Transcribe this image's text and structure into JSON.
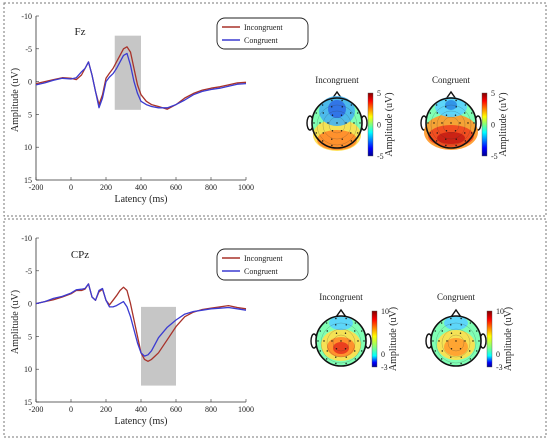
{
  "chart_data": [
    {
      "type": "line",
      "title": "Fz",
      "xlabel": "Latency (ms)",
      "ylabel": "Amplitude (uV)",
      "xlim": [
        -200,
        1000
      ],
      "ylim": [
        -10,
        15
      ],
      "y_inverted": true,
      "xticks": [
        "-200",
        "0",
        "200",
        "400",
        "600",
        "800",
        "1000"
      ],
      "yticks": [
        "-10",
        "-5",
        "0",
        "5",
        "10",
        "15"
      ],
      "highlight_window": {
        "x": [
          250,
          400
        ],
        "y": [
          -7,
          4.3
        ]
      },
      "legend": {
        "position": "top-right",
        "entries": [
          "Incongruent",
          "Congruent"
        ]
      },
      "series": [
        {
          "name": "Incongruent",
          "color": "#a8322a",
          "x": [
            -200,
            -150,
            -100,
            -50,
            0,
            30,
            60,
            80,
            100,
            120,
            140,
            160,
            180,
            200,
            220,
            240,
            260,
            280,
            300,
            320,
            340,
            360,
            380,
            400,
            430,
            460,
            500,
            550,
            600,
            650,
            700,
            750,
            800,
            850,
            900,
            950,
            1000
          ],
          "y": [
            0.3,
            0,
            -0.3,
            -0.6,
            -0.5,
            -0.3,
            -1,
            -2,
            -3,
            -1,
            1.5,
            3.5,
            2,
            -0.5,
            -1.3,
            -2,
            -3,
            -4,
            -5,
            -5.3,
            -4.5,
            -2,
            0.5,
            2,
            3,
            3.5,
            3.8,
            4.2,
            3.5,
            2.5,
            1.8,
            1.3,
            1,
            0.8,
            0.5,
            0.2,
            0.1
          ]
        },
        {
          "name": "Congruent",
          "color": "#3b3bd1",
          "x": [
            -200,
            -150,
            -100,
            -50,
            0,
            30,
            60,
            80,
            100,
            120,
            140,
            160,
            180,
            200,
            220,
            240,
            260,
            280,
            300,
            320,
            340,
            360,
            380,
            400,
            430,
            460,
            500,
            550,
            600,
            650,
            700,
            750,
            800,
            850,
            900,
            950,
            1000
          ],
          "y": [
            0.5,
            0.2,
            -0.2,
            -0.5,
            -0.4,
            -0.6,
            -1.5,
            -2,
            -3,
            -1,
            1.5,
            4,
            2.5,
            0,
            -0.7,
            -1.2,
            -2,
            -3,
            -4,
            -4.3,
            -2.5,
            0,
            1.8,
            3,
            3.5,
            3.8,
            4,
            4,
            3.5,
            2.8,
            2,
            1.5,
            1.2,
            1,
            0.7,
            0.4,
            0.3
          ]
        }
      ]
    },
    {
      "type": "line",
      "title": "CPz",
      "xlabel": "Latency (ms)",
      "ylabel": "Amplitude (uV)",
      "xlim": [
        -200,
        1000
      ],
      "ylim": [
        -10,
        15
      ],
      "y_inverted": true,
      "xticks": [
        "-200",
        "0",
        "200",
        "400",
        "600",
        "800",
        "1000"
      ],
      "yticks": [
        "-10",
        "-5",
        "0",
        "5",
        "10",
        "15"
      ],
      "highlight_window": {
        "x": [
          400,
          600
        ],
        "y": [
          0.5,
          12.5
        ]
      },
      "legend": {
        "position": "top-right",
        "entries": [
          "Incongruent",
          "Congruent"
        ]
      },
      "series": [
        {
          "name": "Incongruent",
          "color": "#a8322a",
          "x": [
            -200,
            -150,
            -100,
            -50,
            0,
            30,
            60,
            80,
            100,
            120,
            140,
            160,
            180,
            200,
            220,
            240,
            260,
            280,
            300,
            320,
            340,
            360,
            380,
            400,
            420,
            440,
            460,
            480,
            500,
            550,
            600,
            650,
            700,
            750,
            800,
            850,
            900,
            950,
            1000
          ],
          "y": [
            0,
            -0.3,
            -0.6,
            -1,
            -1.5,
            -2,
            -2,
            -2.2,
            -3,
            -1,
            -0.5,
            -1.8,
            -2.2,
            -0.5,
            0.2,
            -0.5,
            -1.2,
            -2,
            -2.5,
            -2,
            0,
            2.5,
            5,
            7.5,
            8.5,
            8.8,
            8.5,
            8,
            7.5,
            5.5,
            3.5,
            2,
            1.3,
            0.9,
            0.7,
            0.5,
            0.3,
            0.6,
            0.8
          ]
        },
        {
          "name": "Congruent",
          "color": "#3b3bd1",
          "x": [
            -200,
            -150,
            -100,
            -50,
            0,
            30,
            60,
            80,
            100,
            120,
            140,
            160,
            180,
            200,
            220,
            240,
            260,
            280,
            300,
            320,
            340,
            360,
            380,
            400,
            420,
            440,
            460,
            480,
            500,
            550,
            600,
            650,
            700,
            750,
            800,
            850,
            900,
            950,
            1000
          ],
          "y": [
            0,
            -0.3,
            -0.8,
            -1.1,
            -1.6,
            -2.1,
            -2.2,
            -2.3,
            -3,
            -1,
            -0.5,
            -2,
            -2.3,
            -0.5,
            0.5,
            0.5,
            0.3,
            0,
            -0.3,
            0.5,
            2,
            4,
            6,
            7.5,
            8,
            7.8,
            7.2,
            6.2,
            5.2,
            3.6,
            2.5,
            1.6,
            1.2,
            1,
            0.8,
            0.7,
            0.6,
            0.8,
            1
          ]
        }
      ]
    },
    {
      "type": "heatmap",
      "title": "Incongruent",
      "label": "Amplitude (uV)",
      "colorbar_ticks": [
        "5",
        "0",
        "-5"
      ],
      "range": [
        -5,
        5
      ],
      "pattern": "frontal-negative"
    },
    {
      "type": "heatmap",
      "title": "Congruent",
      "label": "Amplitude (uV)",
      "colorbar_ticks": [
        "5",
        "0",
        "-5"
      ],
      "range": [
        -5,
        5
      ],
      "pattern": "posterior-positive"
    },
    {
      "type": "heatmap",
      "title": "Incongruent",
      "label": "Amplitude (uV)",
      "colorbar_ticks": [
        "10",
        "0",
        "-3"
      ],
      "range": [
        -3,
        10
      ],
      "pattern": "centro-parietal-positive"
    },
    {
      "type": "heatmap",
      "title": "Congruent",
      "label": "Amplitude (uV)",
      "colorbar_ticks": [
        "10",
        "0",
        "-3"
      ],
      "range": [
        -3,
        10
      ],
      "pattern": "centro-parietal-positive-weaker"
    }
  ]
}
